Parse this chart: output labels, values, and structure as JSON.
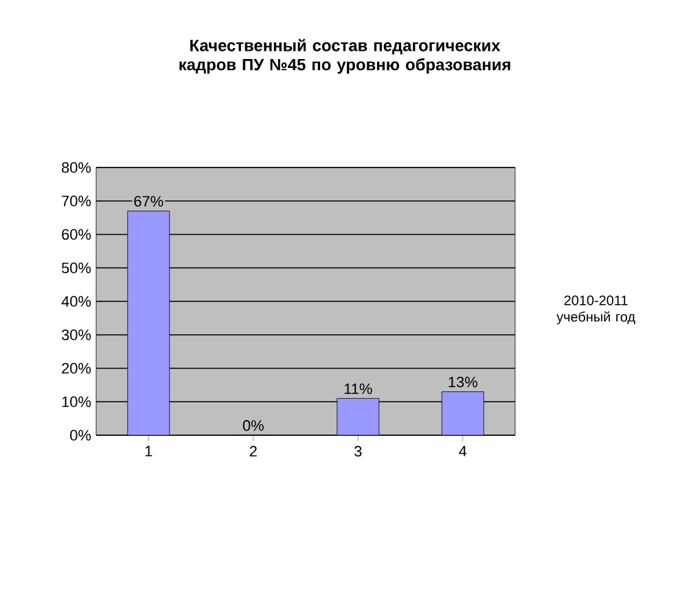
{
  "chart_data": {
    "type": "bar",
    "title": "Качественный состав педагогических кадров ПУ №45 по уровню образования",
    "categories": [
      "1",
      "2",
      "3",
      "4"
    ],
    "series": [
      {
        "name": "2010-2011 учебный год",
        "color": "#9999ff",
        "values": [
          67,
          0,
          11,
          13
        ],
        "value_labels": [
          "67%",
          "0%",
          "11%",
          "13%"
        ]
      }
    ],
    "ylim": [
      0,
      80
    ],
    "yticks": [
      {
        "value": 0,
        "label": "0%"
      },
      {
        "value": 10,
        "label": "10%"
      },
      {
        "value": 20,
        "label": "20%"
      },
      {
        "value": 30,
        "label": "30%"
      },
      {
        "value": 40,
        "label": "40%"
      },
      {
        "value": 50,
        "label": "50%"
      },
      {
        "value": 60,
        "label": "60%"
      },
      {
        "value": 70,
        "label": "70%"
      },
      {
        "value": 80,
        "label": "80%"
      }
    ],
    "grid": "y",
    "legend": "right"
  }
}
